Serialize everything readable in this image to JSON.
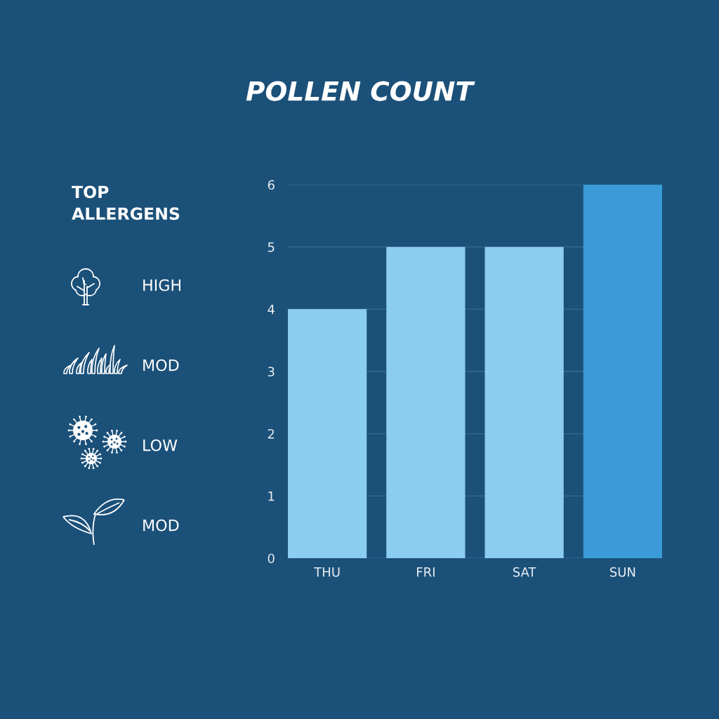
{
  "chart_data": [
    {
      "type": "bar",
      "title": "POLLEN COUNT",
      "categories": [
        "THU",
        "FRI",
        "SAT",
        "SUN"
      ],
      "values": [
        4,
        5,
        5,
        6
      ],
      "colors": [
        "#8bcdf1",
        "#8bcdf1",
        "#8bcdf1",
        "#3a9bd8"
      ],
      "ylim": [
        0,
        6
      ],
      "yticks": [
        0,
        1,
        2,
        3,
        4,
        5,
        6
      ],
      "grid": "y"
    },
    {
      "type": "other",
      "title": "TOP ALLERGENS",
      "annotations": [
        "HIGH",
        "MOD",
        "LOW",
        "MOD"
      ]
    }
  ]
}
